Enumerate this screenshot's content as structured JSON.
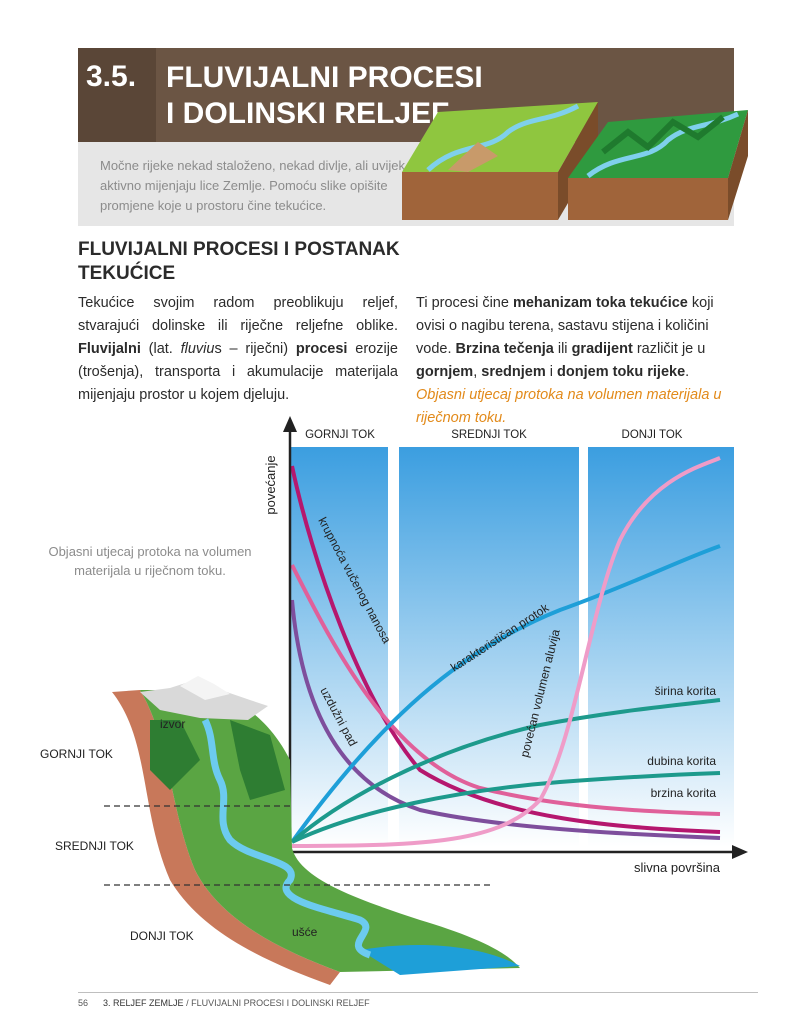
{
  "header": {
    "number": "3.5.",
    "title_line1": "FLUVIJALNI PROCESI",
    "title_line2": "I DOLINSKI RELJEF",
    "intro": "Močne rijeke nekad staloženo, nekad divlje, ali uvijek aktivno mijenjaju lice Zemlje. Pomoću slike opišite promjene koje u prostoru čine tekućice."
  },
  "section": {
    "heading": "FLUVIJALNI PROCESI I POSTANAK TEKUĆICE"
  },
  "col1": {
    "t1": "Tekućice svojim radom preoblikuju reljef, stvarajući dolinske ili riječne reljefne oblike. ",
    "b1": "Fluvijalni",
    "t2": " (lat. ",
    "i1": "fluviu",
    "t3": "s – riječni) ",
    "b2": "procesi",
    "t4": " erozije (trošenja), transporta i akumulacije materijala mijenjaju prostor u kojem djeluju."
  },
  "col2": {
    "t1": "Ti procesi čine ",
    "b1": "mehanizam toka tekućice",
    "t2": " koji ovisi o nagibu terena, sastavu stijena i količini vode. ",
    "b2": "Brzina tečenja",
    "t3": " ili ",
    "b3": "gradijent",
    "t4": " različit je u ",
    "b4": "gornjem",
    "t5": ", ",
    "b5": "srednjem",
    "t6": " i ",
    "b6": "donjem toku rijeke",
    "t7": ". ",
    "question": "Objasni utjecaj protoka na volumen materijala u riječnom toku."
  },
  "side_note": "Objasni utjecaj protoka na volumen materijala u riječnom toku.",
  "landscape_labels": {
    "upper": "GORNJI TOK",
    "middle": "SREDNJI TOK",
    "lower": "DONJI TOK",
    "source": "izvor",
    "mouth": "ušće"
  },
  "chart_data": {
    "type": "line",
    "zones": [
      "GORNJI TOK",
      "SREDNJI TOK",
      "DONJI TOK"
    ],
    "ylabel": "povećanje",
    "xlabel": "slivna površina",
    "series": [
      {
        "name": "krupnoća vučenog nanosa",
        "color": "#b5176e",
        "trend": "decreasing"
      },
      {
        "name": "uzdužni pad",
        "color": "#7e4e9c",
        "trend": "decreasing"
      },
      {
        "name": "karakterističan protok",
        "color": "#1e9fd8",
        "trend": "increasing"
      },
      {
        "name": "povećan volumen aluvija",
        "color": "#ef9cc8",
        "trend": "s-curve increasing"
      },
      {
        "name": "širina korita",
        "color": "#1d9a8c",
        "trend": "increasing"
      },
      {
        "name": "dubina korita",
        "color": "#1d9a8c",
        "trend": "increasing"
      },
      {
        "name": "brzina korita",
        "color": "#e0609a",
        "trend": "decreasing"
      }
    ]
  },
  "footer": {
    "page": "56",
    "chapter": "3. RELJEF ZEMLJE",
    "separator": " / ",
    "section": "FLUVIJALNI PROCESI I DOLINSKI RELJEF"
  }
}
